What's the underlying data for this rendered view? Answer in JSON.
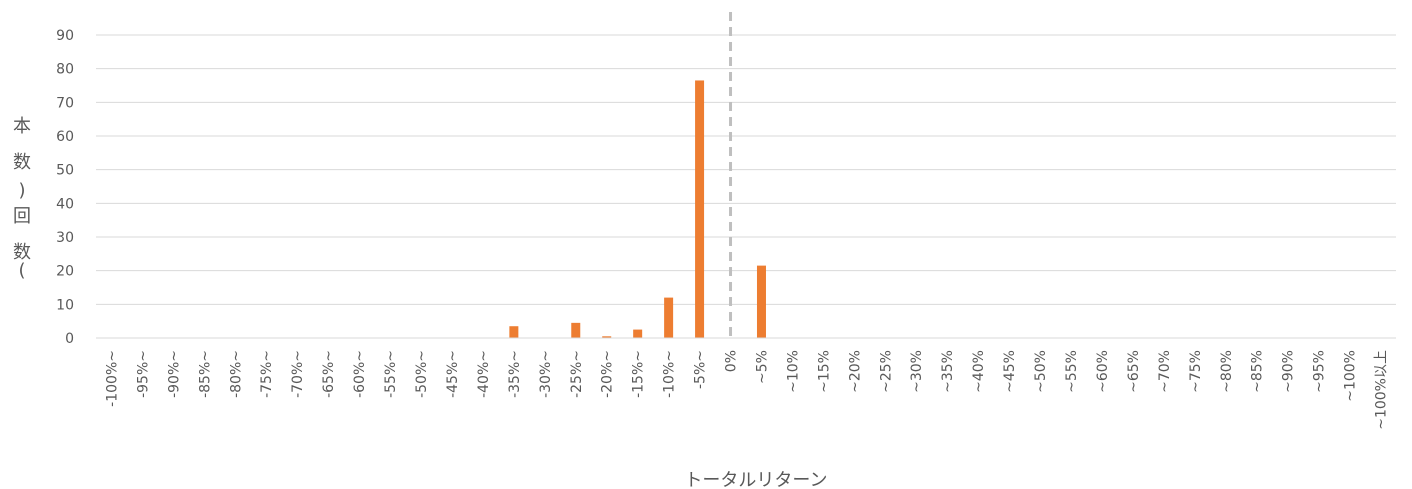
{
  "chart_data": {
    "type": "bar",
    "xlabel": "トータルリターン",
    "ylabel_chars": [
      "本",
      "数",
      ")",
      "回",
      "数",
      "("
    ],
    "ylim": [
      0,
      90
    ],
    "yticks": [
      0,
      10,
      20,
      30,
      40,
      50,
      60,
      70,
      80,
      90
    ],
    "grid": true,
    "reference_line_at": "0%",
    "categories": [
      "-100%~",
      "-95%~",
      "-90%~",
      "-85%~",
      "-80%~",
      "-75%~",
      "-70%~",
      "-65%~",
      "-60%~",
      "-55%~",
      "-50%~",
      "-45%~",
      "-40%~",
      "-35%~",
      "-30%~",
      "-25%~",
      "-20%~",
      "-15%~",
      "-10%~",
      "-5%~",
      "0%",
      "~5%",
      "~10%",
      "~15%",
      "~20%",
      "~25%",
      "~30%",
      "~35%",
      "~40%",
      "~45%",
      "~50%",
      "~55%",
      "~60%",
      "~65%",
      "~70%",
      "~75%",
      "~80%",
      "~85%",
      "~90%",
      "~95%",
      "~100%",
      "~100%以上"
    ],
    "values": [
      0,
      0,
      0,
      0,
      0,
      0,
      0,
      0,
      0,
      0,
      0,
      0,
      0,
      3.5,
      0,
      4.5,
      0.5,
      2.5,
      12,
      76.5,
      0,
      21.5,
      0,
      0,
      0,
      0,
      0,
      0,
      0,
      0,
      0,
      0,
      0,
      0,
      0,
      0,
      0,
      0,
      0,
      0,
      0,
      0
    ],
    "colors": {
      "bar": "#ED7D31",
      "grid": "#D9D9D9",
      "reference_line": "#BFBFBF",
      "text": "#595959"
    }
  }
}
